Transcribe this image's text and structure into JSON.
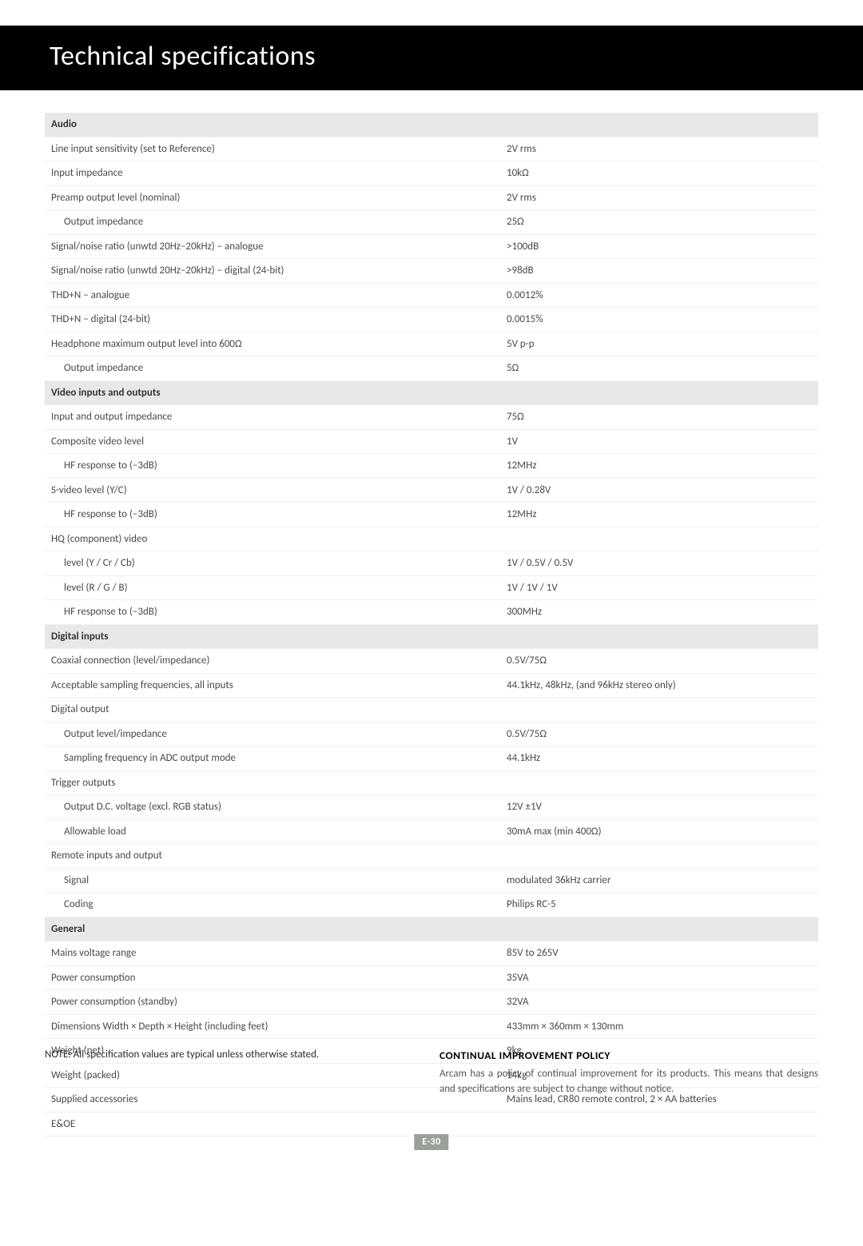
{
  "page_title": "Technical specifications",
  "page_number": "E-30",
  "note_text": "NOTE: All specification values are typical unless otherwise stated.",
  "policy_heading": "CONTINUAL IMPROVEMENT POLICY",
  "policy_body": "Arcam has a policy of continual improvement for its products. This means that designs and specifications are subject to change without notice.",
  "colors": {
    "header_bg": "#000000",
    "header_fg": "#ffffff",
    "section_bg": "#e8e8e8",
    "row_border": "#f0f0f0",
    "text": "#4a4a4a",
    "pagenum_bg": "#9aa09a"
  },
  "sections": [
    {
      "title": "Audio",
      "rows": [
        {
          "label": "Line input sensitivity (set to Reference)",
          "value": "2V rms",
          "indent": 0
        },
        {
          "label": "Input impedance",
          "value": "10kΩ",
          "indent": 0
        },
        {
          "label": "Preamp output level (nominal)",
          "value": "2V rms",
          "indent": 0
        },
        {
          "label": "Output impedance",
          "value": "25Ω",
          "indent": 1
        },
        {
          "label": "Signal/noise ratio (unwtd 20Hz–20kHz) – analogue",
          "value": ">100dB",
          "indent": 0
        },
        {
          "label": "Signal/noise ratio (unwtd 20Hz–20kHz) – digital (24-bit)",
          "value": ">98dB",
          "indent": 0
        },
        {
          "label": "THD+N – analogue",
          "value": "0.0012%",
          "indent": 0
        },
        {
          "label": "THD+N – digital (24-bit)",
          "value": "0.0015%",
          "indent": 0
        },
        {
          "label": "Headphone maximum output level into 600Ω",
          "value": "5V p-p",
          "indent": 0
        },
        {
          "label": "Output impedance",
          "value": "5Ω",
          "indent": 1
        }
      ]
    },
    {
      "title": "Video inputs and outputs",
      "rows": [
        {
          "label": "Input and output impedance",
          "value": "75Ω",
          "indent": 0
        },
        {
          "label": "Composite video level",
          "value": "1V",
          "indent": 0
        },
        {
          "label": "HF response to (–3dB)",
          "value": "12MHz",
          "indent": 1
        },
        {
          "label": "S-video level (Y/C)",
          "value": "1V / 0.28V",
          "indent": 0
        },
        {
          "label": "HF response to (–3dB)",
          "value": "12MHz",
          "indent": 1
        },
        {
          "label": "HQ (component) video",
          "value": "",
          "indent": 0
        },
        {
          "label": "level (Y / Cr / Cb)",
          "value": "1V / 0.5V / 0.5V",
          "indent": 1
        },
        {
          "label": "level (R / G / B)",
          "value": "1V / 1V / 1V",
          "indent": 1
        },
        {
          "label": "HF response to (–3dB)",
          "value": "300MHz",
          "indent": 1
        }
      ]
    },
    {
      "title": "Digital inputs",
      "rows": [
        {
          "label": "Coaxial connection (level/impedance)",
          "value": "0.5V/75Ω",
          "indent": 0
        },
        {
          "label": "Acceptable sampling frequencies, all inputs",
          "value": "44.1kHz, 48kHz, (and 96kHz stereo only)",
          "indent": 0
        },
        {
          "label": "Digital output",
          "value": "",
          "indent": 0
        },
        {
          "label": "Output level/impedance",
          "value": "0.5V/75Ω",
          "indent": 1
        },
        {
          "label": "Sampling frequency in ADC output mode",
          "value": "44.1kHz",
          "indent": 1
        },
        {
          "label": "Trigger outputs",
          "value": "",
          "indent": 0
        },
        {
          "label": "Output D.C. voltage (excl. RGB status)",
          "value": "12V ±1V",
          "indent": 1
        },
        {
          "label": "Allowable load",
          "value": "30mA max (min 400Ω)",
          "indent": 1
        },
        {
          "label": "Remote inputs and output",
          "value": "",
          "indent": 0
        },
        {
          "label": "Signal",
          "value": "modulated 36kHz carrier",
          "indent": 1
        },
        {
          "label": "Coding",
          "value": "Philips RC-5",
          "indent": 1
        }
      ]
    },
    {
      "title": "General",
      "rows": [
        {
          "label": "Mains voltage range",
          "value": "85V to 265V",
          "indent": 0
        },
        {
          "label": "Power consumption",
          "value": "35VA",
          "indent": 0
        },
        {
          "label": "Power consumption (standby)",
          "value": "32VA",
          "indent": 0
        },
        {
          "label": "Dimensions Width × Depth × Height (including feet)",
          "value": "433mm × 360mm × 130mm",
          "indent": 0
        },
        {
          "label": "Weight (net)",
          "value": "9kg",
          "indent": 0
        },
        {
          "label": "Weight (packed)",
          "value": "14kg",
          "indent": 0
        },
        {
          "label": "Supplied accessories",
          "value": "Mains lead, CR80 remote control, 2 × AA batteries",
          "indent": 0
        },
        {
          "label": "E&OE",
          "value": "",
          "indent": 0
        }
      ]
    }
  ]
}
